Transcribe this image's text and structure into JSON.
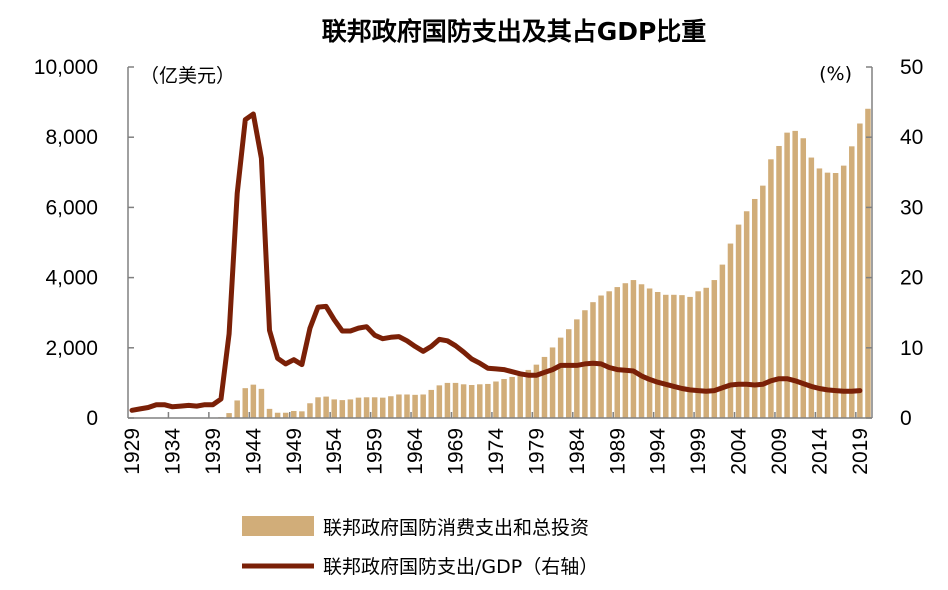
{
  "chart_data": {
    "type": "bar+line",
    "title": "联邦政府国防支出及其占GDP比重",
    "left_unit": "（亿美元）",
    "right_unit": "(%)",
    "ylim_left": [
      0,
      10000
    ],
    "ylim_right": [
      0,
      50
    ],
    "left_ticks": [
      "0",
      "2,000",
      "4,000",
      "6,000",
      "8,000",
      "10,000"
    ],
    "right_ticks": [
      "0",
      "10",
      "20",
      "30",
      "40",
      "50"
    ],
    "x_tick_labels": [
      "1929",
      "1934",
      "1939",
      "1944",
      "1949",
      "1954",
      "1959",
      "1964",
      "1969",
      "1974",
      "1979",
      "1984",
      "1989",
      "1994",
      "1999",
      "2004",
      "2009",
      "2014",
      "2019"
    ],
    "legend_position": "bottom",
    "grid": false,
    "colors": {
      "bar": "#D1AD79",
      "line": "#7A2007"
    },
    "x_start": 1929,
    "series": [
      {
        "name": "联邦政府国防消费支出和总投资",
        "type": "bar",
        "axis": "left",
        "values": [
          10,
          10,
          11,
          10,
          10,
          10,
          12,
          13,
          13,
          13,
          13,
          22,
          140,
          500,
          850,
          950,
          830,
          260,
          150,
          150,
          200,
          190,
          420,
          590,
          610,
          530,
          510,
          530,
          580,
          590,
          590,
          580,
          620,
          670,
          670,
          660,
          670,
          800,
          930,
          1000,
          1000,
          960,
          940,
          960,
          970,
          1040,
          1110,
          1170,
          1270,
          1370,
          1520,
          1740,
          2010,
          2290,
          2530,
          2810,
          3070,
          3300,
          3490,
          3610,
          3730,
          3840,
          3930,
          3810,
          3690,
          3590,
          3510,
          3510,
          3500,
          3450,
          3610,
          3710,
          3930,
          4370,
          4970,
          5510,
          5890,
          6240,
          6620,
          7370,
          7750,
          8130,
          8180,
          7970,
          7420,
          7110,
          6990,
          6980,
          7190,
          7740,
          8390,
          8810
        ]
      },
      {
        "name": "联邦政府国防支出/GDP（右轴）",
        "type": "line",
        "axis": "right",
        "values": [
          1.1,
          1.3,
          1.5,
          1.9,
          1.9,
          1.6,
          1.7,
          1.8,
          1.7,
          1.9,
          1.9,
          2.7,
          12,
          32,
          42.5,
          43.3,
          37,
          12.5,
          8.5,
          7.7,
          8.3,
          7.6,
          12.8,
          15.8,
          15.9,
          14,
          12.4,
          12.4,
          12.8,
          13,
          11.8,
          11.3,
          11.5,
          11.6,
          11,
          10.2,
          9.5,
          10.2,
          11.2,
          11,
          10.3,
          9.4,
          8.4,
          7.8,
          7.1,
          7.0,
          6.9,
          6.6,
          6.3,
          6.1,
          6.1,
          6.5,
          6.9,
          7.5,
          7.5,
          7.5,
          7.7,
          7.8,
          7.7,
          7.2,
          6.9,
          6.8,
          6.7,
          6.0,
          5.5,
          5.1,
          4.8,
          4.5,
          4.2,
          4.0,
          3.9,
          3.8,
          3.9,
          4.3,
          4.7,
          4.8,
          4.8,
          4.7,
          4.8,
          5.3,
          5.6,
          5.6,
          5.3,
          4.9,
          4.5,
          4.2,
          4.0,
          3.9,
          3.8,
          3.8,
          3.9,
          null
        ]
      }
    ]
  }
}
